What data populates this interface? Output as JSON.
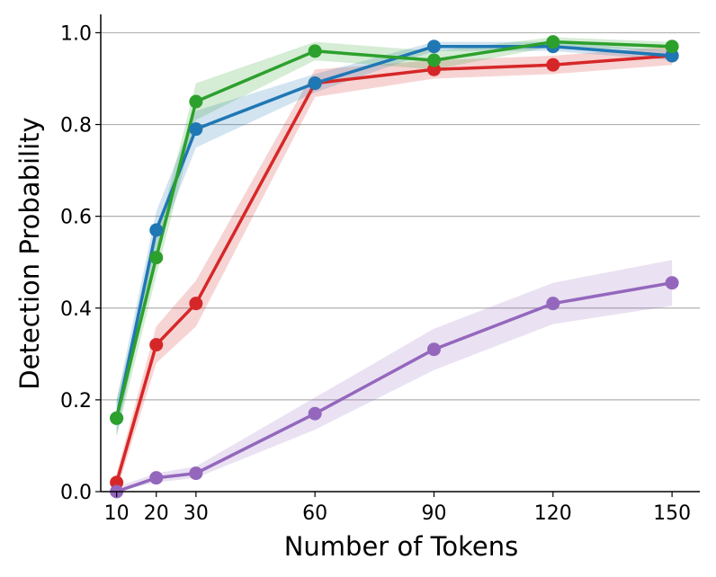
{
  "chart_data": {
    "type": "line",
    "title": "",
    "xlabel": "Number of Tokens",
    "ylabel": "Detection Probability",
    "x": [
      10,
      20,
      30,
      60,
      90,
      120,
      150
    ],
    "x_ticks": [
      10,
      20,
      30,
      60,
      90,
      120,
      150
    ],
    "x_tick_labels": [
      "10",
      "20",
      "30",
      "60",
      "90",
      "120",
      "150"
    ],
    "xlim": [
      6,
      157
    ],
    "ylim": [
      0.0,
      1.04
    ],
    "y_ticks": [
      0.0,
      0.2,
      0.4,
      0.6,
      0.8,
      1.0
    ],
    "y_tick_labels": [
      "0.0",
      "0.2",
      "0.4",
      "0.6",
      "0.8",
      "1.0"
    ],
    "grid": "horizontal",
    "legend": "none",
    "series": [
      {
        "color": "#d62728",
        "values": [
          0.02,
          0.32,
          0.41,
          0.89,
          0.92,
          0.93,
          0.95
        ],
        "lower": [
          0.0,
          0.28,
          0.36,
          0.86,
          0.9,
          0.91,
          0.93
        ],
        "upper": [
          0.04,
          0.36,
          0.46,
          0.92,
          0.94,
          0.95,
          0.97
        ]
      },
      {
        "color": "#1f77b4",
        "values": [
          0.16,
          0.57,
          0.79,
          0.89,
          0.97,
          0.97,
          0.95
        ],
        "lower": [
          0.12,
          0.53,
          0.75,
          0.87,
          0.96,
          0.96,
          0.94
        ],
        "upper": [
          0.2,
          0.61,
          0.83,
          0.91,
          0.98,
          0.98,
          0.96
        ]
      },
      {
        "color": "#2ca02c",
        "values": [
          0.16,
          0.51,
          0.85,
          0.96,
          0.94,
          0.98,
          0.97
        ],
        "lower": [
          0.12,
          0.47,
          0.81,
          0.94,
          0.92,
          0.97,
          0.96
        ],
        "upper": [
          0.2,
          0.55,
          0.89,
          0.98,
          0.96,
          0.99,
          0.98
        ]
      },
      {
        "color": "#9467bd",
        "values": [
          0.0,
          0.03,
          0.04,
          0.17,
          0.31,
          0.41,
          0.455
        ],
        "lower": [
          0.0,
          0.02,
          0.03,
          0.135,
          0.265,
          0.365,
          0.405
        ],
        "upper": [
          0.01,
          0.04,
          0.055,
          0.205,
          0.355,
          0.455,
          0.505
        ]
      }
    ]
  }
}
